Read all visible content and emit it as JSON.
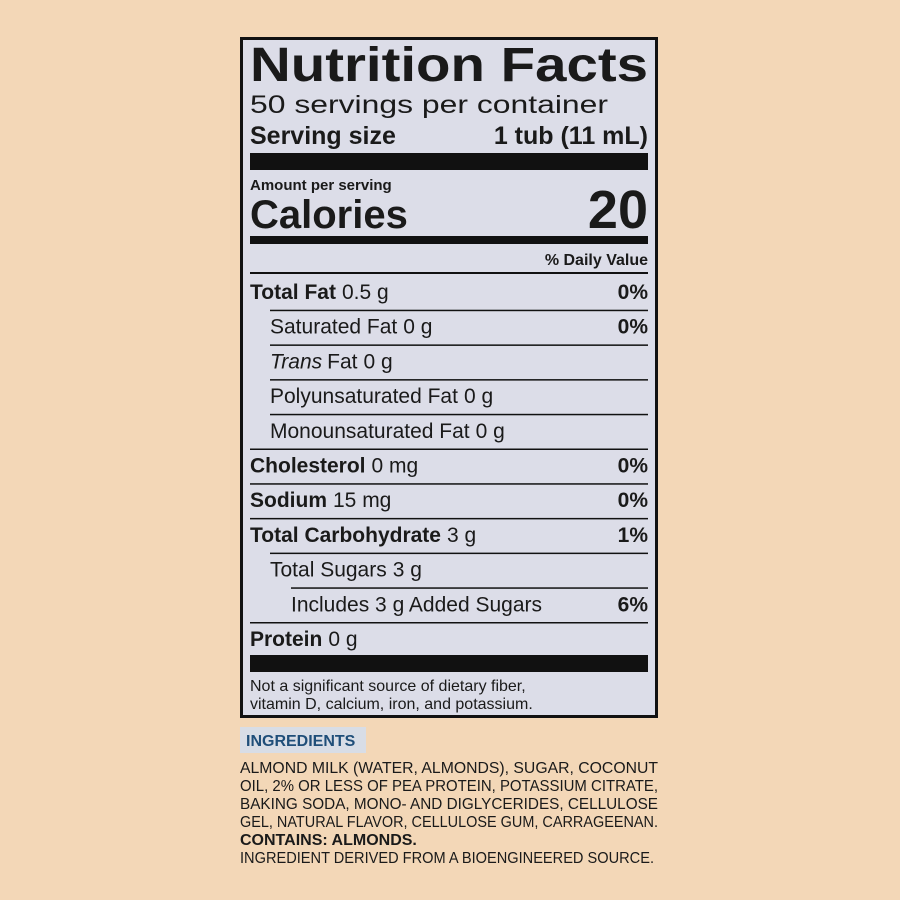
{
  "header": {
    "title": "Nutrition Facts",
    "servings": "50 servings per container",
    "serving_size_label": "Serving size",
    "serving_size_value": "1 tub (11 mL)"
  },
  "calories": {
    "amount_label": "Amount per serving",
    "label": "Calories",
    "value": "20"
  },
  "daily_value_header": "% Daily Value",
  "nutrients": [
    {
      "name": "Total Fat",
      "amount": "0.5 g",
      "dv": "0%",
      "bold": true,
      "indent": 0
    },
    {
      "name": "Saturated Fat",
      "amount": "0 g",
      "dv": "0%",
      "bold": false,
      "indent": 1
    },
    {
      "italic_prefix": "Trans",
      "name": "Fat",
      "amount": "0 g",
      "bold": false,
      "indent": 1
    },
    {
      "name": "Polyunsaturated Fat",
      "amount": "0 g",
      "bold": false,
      "indent": 1
    },
    {
      "name": "Monounsaturated Fat",
      "amount": "0 g",
      "bold": false,
      "indent": 1
    },
    {
      "name": "Cholesterol",
      "amount": "0 mg",
      "dv": "0%",
      "bold": true,
      "indent": 0
    },
    {
      "name": "Sodium",
      "amount": "15 mg",
      "dv": "0%",
      "bold": true,
      "indent": 0
    },
    {
      "name": "Total Carbohydrate",
      "amount": "3 g",
      "dv": "1%",
      "bold": true,
      "indent": 0
    },
    {
      "name": "Total Sugars",
      "amount": "3 g",
      "bold": false,
      "indent": 1
    },
    {
      "name": "Includes 3 g Added Sugars",
      "dv": "6%",
      "bold": false,
      "indent": 2
    },
    {
      "name": "Protein",
      "amount": "0 g",
      "bold": true,
      "indent": 0
    }
  ],
  "footnote": [
    "Not a significant source of dietary fiber,",
    "vitamin D, calcium, iron, and potassium."
  ],
  "ingredients": {
    "heading": "INGREDIENTS",
    "lines": [
      "ALMOND MILK (WATER, ALMONDS), SUGAR, COCONUT",
      "OIL, 2% OR LESS OF PEA PROTEIN, POTASSIUM CITRATE,",
      "BAKING SODA, MONO- AND DIGLYCERIDES, CELLULOSE",
      "GEL, NATURAL FLAVOR, CELLULOSE GUM, CARRAGEENAN."
    ],
    "contains": "CONTAINS: ALMONDS.",
    "note": "INGREDIENT DERIVED FROM A BIOENGINEERED SOURCE."
  }
}
